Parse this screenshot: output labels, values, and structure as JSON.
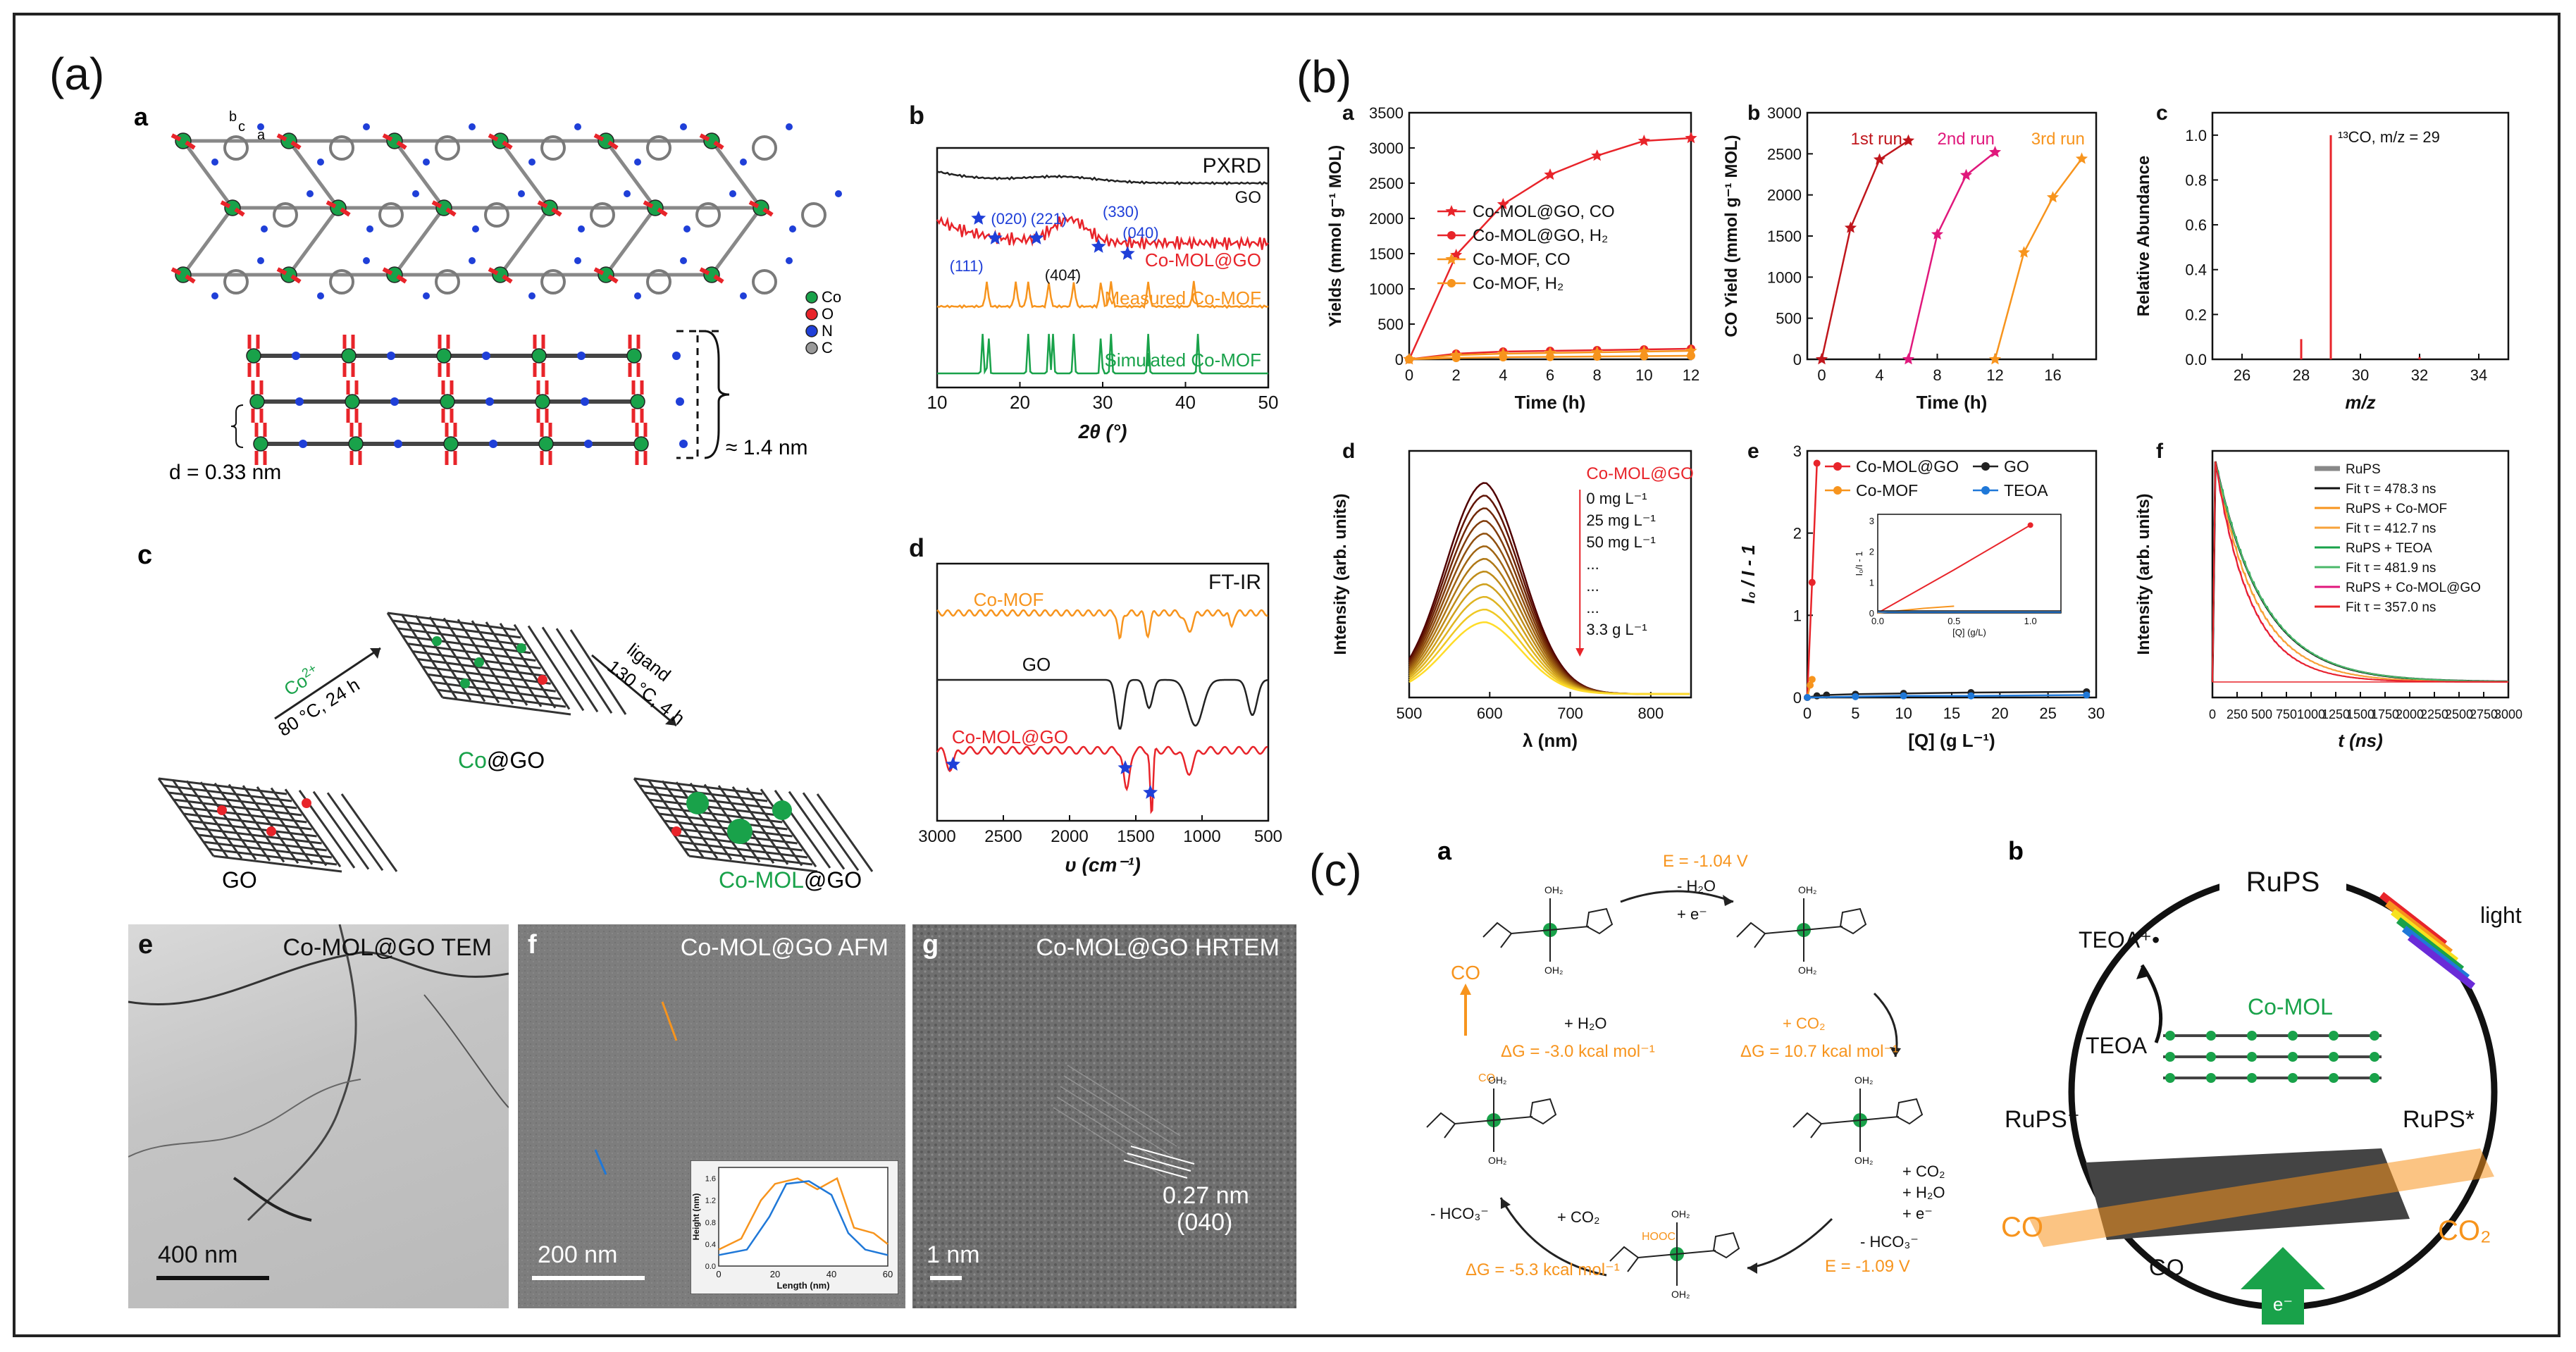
{
  "panel_labels": {
    "a_main": "(a)",
    "b_main": "(b)",
    "c_main": "(c)"
  },
  "colors": {
    "red": "#e8242a",
    "orange": "#f7941d",
    "green": "#19a24a",
    "dark": "#222222",
    "blue": "#1f3fd8",
    "magenta": "#e0187c",
    "darkred": "#c0161c"
  },
  "section_a": {
    "a": {
      "tag": "a",
      "axis_b": "b",
      "axis_c": "c",
      "axis_a": "a",
      "d_label": "d = 0.33 nm",
      "h_label": "≈ 1.4 nm",
      "legend": [
        "Co",
        "O",
        "N",
        "C"
      ]
    },
    "c": {
      "tag": "c",
      "step1_ion": "Co",
      "step1_sup": "2+",
      "step1_cond": "80 °C, 24 h",
      "step2": "ligand",
      "step2_cond": "130 °C, 4 h",
      "go": "GO",
      "cogo_co": "Co",
      "cogo_rest": "@GO",
      "comol_co": "Co-MOL",
      "comol_rest": "@GO"
    },
    "e": {
      "tag": "e",
      "caption": "Co-MOL@GO TEM",
      "scale": "400 nm"
    },
    "f": {
      "tag": "f",
      "caption": "Co-MOL@GO AFM",
      "scale": "200 nm",
      "inset_xlabel": "Length (nm)",
      "inset_ylabel": "Height (nm)",
      "inset_xticks": [
        "0",
        "20",
        "40",
        "60"
      ],
      "inset_yticks": [
        "0.0",
        "0.4",
        "0.8",
        "1.2",
        "1.6"
      ]
    },
    "g": {
      "tag": "g",
      "caption": "Co-MOL@GO HRTEM",
      "scale": "1 nm",
      "spacing": "0.27 nm",
      "plane": "(040)"
    }
  },
  "section_b_overlay": {
    "go_label": "GO",
    "comol_label": "Co-MOL@GO",
    "peak_111": "(111)",
    "peak_020": "(020)",
    "peak_221": "(221)",
    "peak_404": "(404̄)",
    "peak_330": "(330)",
    "peak_040": "(040)"
  },
  "section_c": {
    "a": {
      "tag": "a",
      "E1": "E = -1.04 V",
      "minus_h2o": "- H₂O",
      "plus_e": "+ e⁻",
      "plus_h2o": "+ H₂O",
      "plus_co2": "+ CO₂",
      "dG1": "ΔG = -3.0 kcal mol⁻¹",
      "dG2": "ΔG = 10.7 kcal mol⁻¹",
      "co": "CO",
      "minus_hco3_l": "- HCO₃⁻",
      "plus_co2_b": "+ CO₂",
      "plus_co2_r": "+ CO₂",
      "plus_h2o_r": "+ H₂O",
      "plus_e_r": "+ e⁻",
      "minus_hco3_r": "- HCO₃⁻",
      "dG3": "ΔG = -5.3 kcal mol⁻¹",
      "E2": "E = -1.09 V",
      "hooc": "HOOC"
    },
    "b": {
      "tag": "b",
      "rups": "RuPS",
      "teoa_rad": "TEOA⁺•",
      "light": "light",
      "teoa": "TEOA",
      "comol": "Co-MOL",
      "rups_plus": "RuPS⁺",
      "rups_star": "RuPS*",
      "co": "CO",
      "co2": "CO₂",
      "go": "GO",
      "e": "e⁻"
    }
  },
  "chart_data": [
    {
      "id": "a-b",
      "type": "line",
      "tag": "b",
      "title": "PXRD",
      "xlabel": "2θ (°)",
      "ylabel": "",
      "xlim": [
        10,
        50
      ],
      "xticks": [
        "10",
        "20",
        "30",
        "40",
        "50"
      ],
      "series": [
        {
          "name": "GO",
          "color": "#222222"
        },
        {
          "name": "Co-MOL@GO",
          "color": "#e8242a"
        },
        {
          "name": "Measured Co-MOF",
          "color": "#f7941d"
        },
        {
          "name": "Simulated Co-MOF",
          "color": "#19a24a"
        }
      ]
    },
    {
      "id": "a-d",
      "type": "line",
      "tag": "d",
      "title": "FT-IR",
      "xlabel": "υ (cm⁻¹)",
      "ylabel": "",
      "xlim": [
        3000,
        500
      ],
      "xticks": [
        "3000",
        "2500",
        "2000",
        "1500",
        "1000",
        "500"
      ],
      "series": [
        {
          "name": "Co-MOF",
          "color": "#f7941d"
        },
        {
          "name": "GO",
          "color": "#222222"
        },
        {
          "name": "Co-MOL@GO",
          "color": "#e8242a"
        }
      ]
    },
    {
      "id": "b-a",
      "type": "line",
      "tag": "a",
      "xlabel": "Time (h)",
      "ylabel": "Yields (mmol g⁻¹ MOL)",
      "xlim": [
        0,
        12
      ],
      "ylim": [
        0,
        3500
      ],
      "xticks": [
        "0",
        "2",
        "4",
        "6",
        "8",
        "10",
        "12"
      ],
      "yticks": [
        "0",
        "500",
        "1000",
        "1500",
        "2000",
        "2500",
        "3000",
        "3500"
      ],
      "series": [
        {
          "name": "Co-MOL@GO, CO",
          "color": "#e8242a",
          "marker": "star",
          "x": [
            0,
            2,
            4,
            6,
            8,
            10,
            12
          ],
          "y": [
            0,
            1480,
            2200,
            2620,
            2890,
            3100,
            3140
          ]
        },
        {
          "name": "Co-MOL@GO, H₂",
          "color": "#e8242a",
          "marker": "circle",
          "x": [
            0,
            2,
            4,
            6,
            8,
            10,
            12
          ],
          "y": [
            0,
            80,
            110,
            120,
            130,
            140,
            150
          ]
        },
        {
          "name": "Co-MOF, CO",
          "color": "#f7941d",
          "marker": "star",
          "x": [
            0,
            2,
            4,
            6,
            8,
            10,
            12
          ],
          "y": [
            0,
            60,
            80,
            90,
            100,
            110,
            120
          ]
        },
        {
          "name": "Co-MOF, H₂",
          "color": "#f7941d",
          "marker": "circle",
          "x": [
            0,
            2,
            4,
            6,
            8,
            10,
            12
          ],
          "y": [
            0,
            20,
            30,
            35,
            40,
            45,
            50
          ]
        }
      ]
    },
    {
      "id": "b-b",
      "type": "line",
      "tag": "b",
      "xlabel": "Time (h)",
      "ylabel": "CO Yield (mmol g⁻¹ MOL)",
      "xlim": [
        -1,
        19
      ],
      "ylim": [
        0,
        3000
      ],
      "xticks": [
        "0",
        "4",
        "8",
        "12",
        "16"
      ],
      "yticks": [
        "0",
        "500",
        "1000",
        "1500",
        "2000",
        "2500",
        "3000"
      ],
      "series": [
        {
          "name": "1st run",
          "color": "#c0161c",
          "x": [
            0,
            2,
            4,
            6
          ],
          "y": [
            0,
            1600,
            2430,
            2660
          ]
        },
        {
          "name": "2nd run",
          "color": "#e0187c",
          "x": [
            6,
            8,
            10,
            12
          ],
          "y": [
            0,
            1520,
            2240,
            2520
          ]
        },
        {
          "name": "3rd run",
          "color": "#f7941d",
          "x": [
            12,
            14,
            16,
            18
          ],
          "y": [
            0,
            1300,
            1970,
            2440
          ]
        }
      ]
    },
    {
      "id": "b-c",
      "type": "bar",
      "tag": "c",
      "xlabel": "m/z",
      "ylabel": "Relative Abundance",
      "xlim": [
        25,
        35
      ],
      "ylim": [
        0,
        1.1
      ],
      "xticks": [
        "26",
        "28",
        "30",
        "32",
        "34"
      ],
      "yticks": [
        "0.0",
        "0.2",
        "0.4",
        "0.6",
        "0.8",
        "1.0"
      ],
      "annotation": "¹³CO, m/z = 29",
      "x": [
        28,
        29,
        32
      ],
      "values": [
        0.09,
        1.0,
        0.01
      ]
    },
    {
      "id": "b-d",
      "type": "line",
      "tag": "d",
      "xlabel": "λ (nm)",
      "ylabel": "Intensity (arb. units)",
      "xlim": [
        500,
        850
      ],
      "xticks": [
        "500",
        "600",
        "700",
        "800"
      ],
      "legend": [
        "Co-MOL@GO",
        "0 mg L⁻¹",
        "25 mg L⁻¹",
        "50 mg L⁻¹",
        "...",
        "...",
        "...",
        "3.3 g L⁻¹"
      ]
    },
    {
      "id": "b-e",
      "type": "line",
      "tag": "e",
      "xlabel": "[Q] (g L⁻¹)",
      "ylabel": "I₀ / I - 1",
      "xlim": [
        0,
        30
      ],
      "ylim": [
        0,
        3
      ],
      "xticks": [
        "0",
        "5",
        "10",
        "15",
        "20",
        "25",
        "30"
      ],
      "yticks": [
        "0",
        "1",
        "2",
        "3"
      ],
      "series": [
        {
          "name": "Co-MOL@GO",
          "color": "#e8242a",
          "x": [
            0,
            0.5,
            1
          ],
          "y": [
            0,
            1.4,
            2.85
          ]
        },
        {
          "name": "GO",
          "color": "#222222",
          "x": [
            0,
            1,
            2,
            5,
            10,
            17,
            29
          ],
          "y": [
            0,
            0.02,
            0.03,
            0.04,
            0.05,
            0.06,
            0.07
          ]
        },
        {
          "name": "Co-MOF",
          "color": "#f7941d",
          "x": [
            0,
            0.3,
            0.5
          ],
          "y": [
            0,
            0.15,
            0.22
          ]
        },
        {
          "name": "TEOA",
          "color": "#1f78d8",
          "x": [
            0,
            5,
            10,
            17,
            29
          ],
          "y": [
            0,
            0.01,
            0.02,
            0.02,
            0.03
          ]
        }
      ],
      "inset": {
        "xlabel": "[Q] (g/L)",
        "ylabel": "I₀/I - 1",
        "xticks": [
          "0.0",
          "0.5",
          "1.0"
        ],
        "yticks": [
          "0",
          "1",
          "2",
          "3"
        ]
      }
    },
    {
      "id": "b-f",
      "type": "line",
      "tag": "f",
      "xlabel": "t (ns)",
      "ylabel": "Intensity (arb. units)",
      "xlim": [
        0,
        3000
      ],
      "xticks": [
        "0",
        "250",
        "500",
        "750",
        "1000",
        "1250",
        "1500",
        "1750",
        "2000",
        "2250",
        "2500",
        "2750",
        "3000"
      ],
      "series": [
        {
          "name": "RuPS",
          "color": "#888888",
          "tau": 478.3
        },
        {
          "name": "Fit τ = 478.3 ns",
          "color": "#111111",
          "tau": 478.3
        },
        {
          "name": "RuPS + Co-MOF",
          "color": "#f7941d",
          "tau": 412.7
        },
        {
          "name": "Fit τ = 412.7 ns",
          "color": "#f7a23a",
          "tau": 412.7
        },
        {
          "name": "RuPS + TEOA",
          "color": "#19a24a",
          "tau": 481.9
        },
        {
          "name": "Fit τ = 481.9 ns",
          "color": "#4bb86a",
          "tau": 481.9
        },
        {
          "name": "RuPS + Co-MOL@GO",
          "color": "#e0187c",
          "tau": 357.0
        },
        {
          "name": "Fit τ = 357.0 ns",
          "color": "#e8242a",
          "tau": 357.0
        }
      ]
    }
  ]
}
